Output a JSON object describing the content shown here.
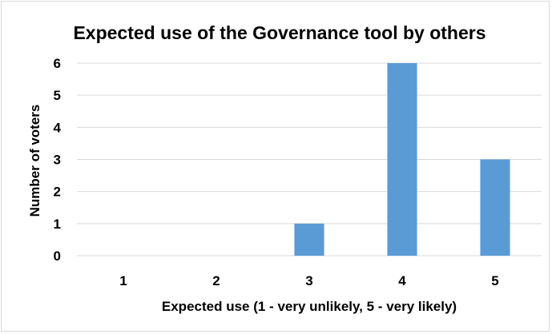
{
  "chart_data": {
    "type": "bar",
    "title": "Expected use of the Governance tool by others",
    "xlabel": "Expected use (1 - very unlikely, 5 - very likely)",
    "ylabel": "Number of voters",
    "categories": [
      "1",
      "2",
      "3",
      "4",
      "5"
    ],
    "values": [
      0,
      0,
      1,
      6,
      3
    ],
    "ylim": [
      0,
      6
    ],
    "yticks": [
      "0",
      "1",
      "2",
      "3",
      "4",
      "5",
      "6"
    ],
    "grid": true,
    "legend": "none",
    "bar_color": "#5b9bd5"
  }
}
